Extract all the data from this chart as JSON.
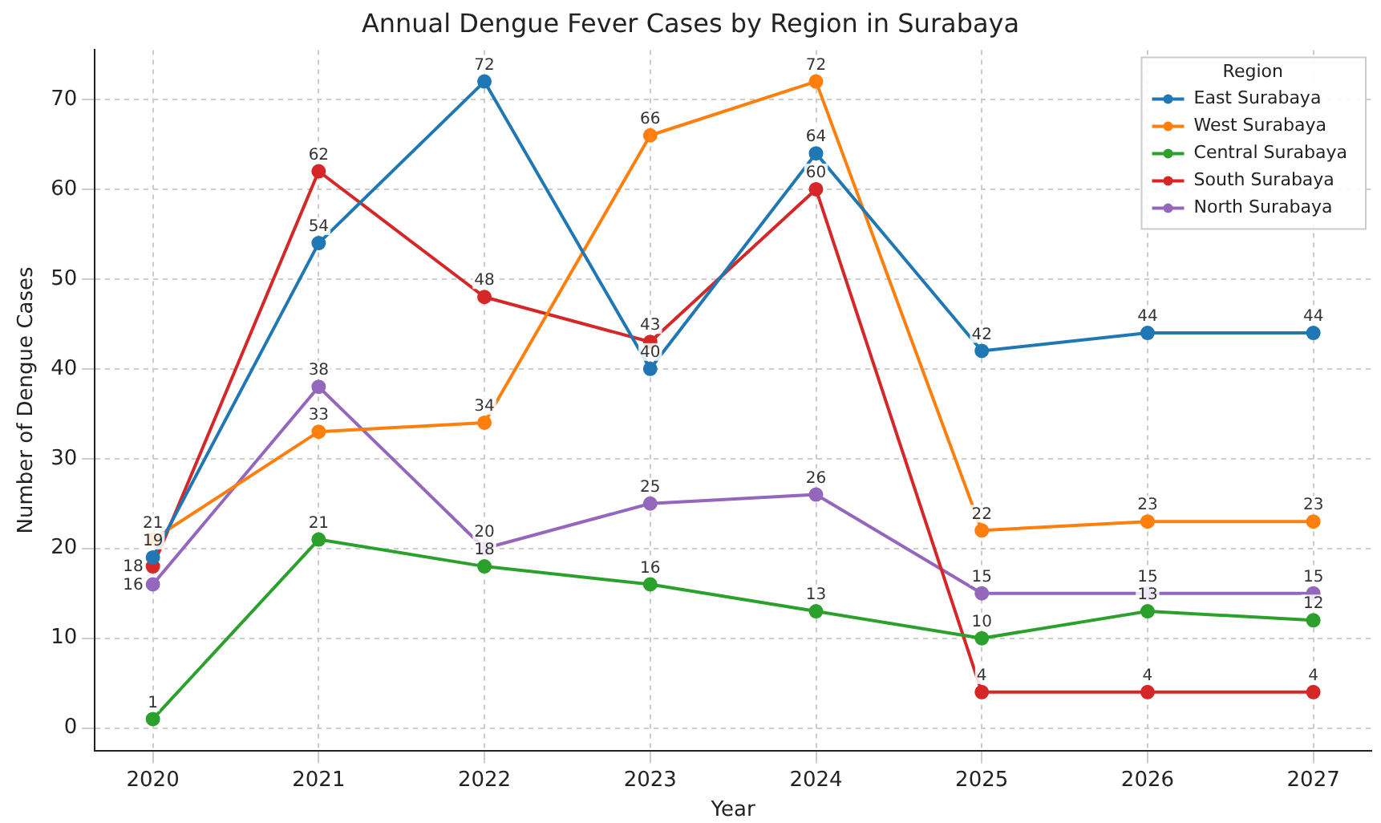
{
  "chart_data": {
    "type": "line",
    "title": "Annual Dengue Fever Cases by Region in Surabaya",
    "xlabel": "Year",
    "ylabel": "Number of Dengue Cases",
    "legend_title": "Region",
    "x": [
      2020,
      2021,
      2022,
      2023,
      2024,
      2025,
      2026,
      2027
    ],
    "series": [
      {
        "name": "East Surabaya",
        "color": "#1f77b4",
        "values": [
          19,
          54,
          72,
          40,
          64,
          42,
          44,
          44
        ]
      },
      {
        "name": "West Surabaya",
        "color": "#ff7f0e",
        "values": [
          21,
          33,
          34,
          66,
          72,
          22,
          23,
          23
        ]
      },
      {
        "name": "Central Surabaya",
        "color": "#2ca02c",
        "values": [
          1,
          21,
          18,
          16,
          13,
          10,
          13,
          12
        ]
      },
      {
        "name": "South Surabaya",
        "color": "#d62728",
        "values": [
          18,
          62,
          48,
          43,
          60,
          4,
          4,
          4
        ]
      },
      {
        "name": "North Surabaya",
        "color": "#9467bd",
        "values": [
          16,
          38,
          20,
          25,
          26,
          15,
          15,
          15
        ]
      }
    ],
    "xlim": [
      2019.65,
      2027.35
    ],
    "xticks": [
      2020,
      2021,
      2022,
      2023,
      2024,
      2025,
      2026,
      2027
    ],
    "ylim": [
      -2.5,
      75.5
    ],
    "yticks": [
      0,
      10,
      20,
      30,
      40,
      50,
      60,
      70
    ],
    "grid": true,
    "legend": "top right",
    "marker": "circle",
    "line_style": "solid",
    "data_labels": true
  }
}
